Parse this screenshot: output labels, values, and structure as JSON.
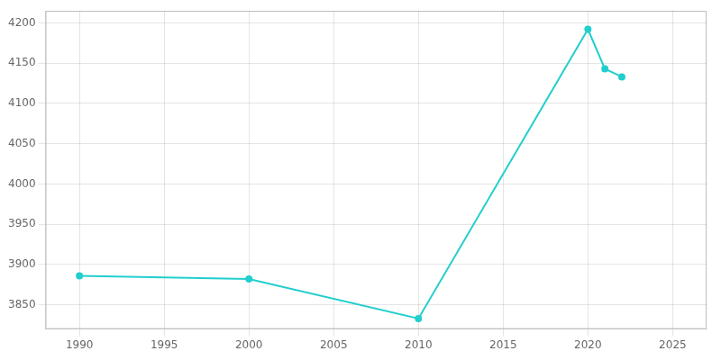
{
  "chart_data": {
    "type": "line",
    "x": [
      1990,
      2000,
      2010,
      2020,
      2021,
      2022
    ],
    "values": [
      3886,
      3882,
      3833,
      4192,
      4143,
      4133
    ],
    "color": "#22cece",
    "marker": "circle",
    "xlim": [
      1988,
      2027
    ],
    "ylim": [
      3820,
      4215
    ],
    "xticks": [
      1990,
      1995,
      2000,
      2005,
      2010,
      2015,
      2020,
      2025
    ],
    "yticks": [
      3850,
      3900,
      3950,
      4000,
      4050,
      4100,
      4150,
      4200
    ],
    "grid": true
  }
}
